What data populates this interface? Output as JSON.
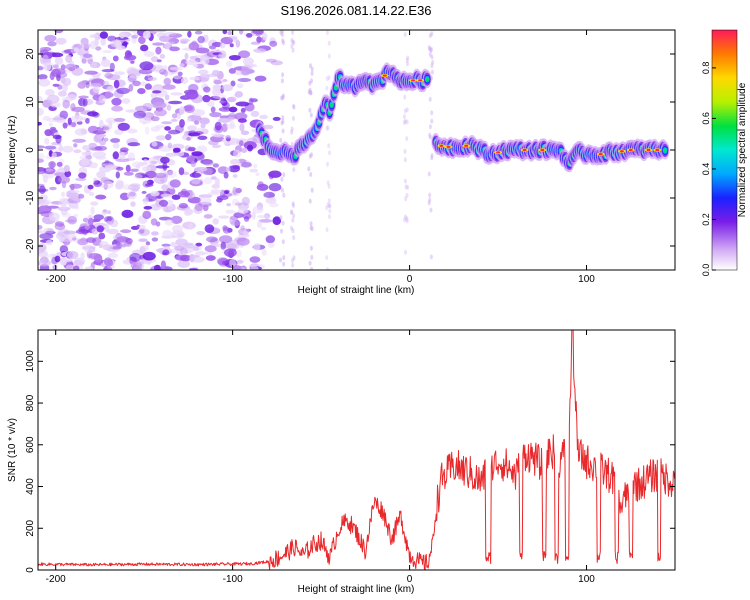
{
  "title": "S196.2026.081.14.22.E36",
  "chart_data": [
    {
      "type": "heatmap",
      "xlabel": "Height of straight line (km)",
      "ylabel": "Frequency (Hz)",
      "xlim": [
        -210,
        150
      ],
      "ylim": [
        -25,
        25
      ],
      "xticks": [
        -200,
        -100,
        0,
        100
      ],
      "yticks": [
        -20,
        -10,
        0,
        10,
        20
      ],
      "colorbar": {
        "label": "Normalized spectral amplitude",
        "range": [
          0,
          0.95
        ],
        "ticks": [
          "0.0",
          "0.2",
          "0.4",
          "0.6",
          "0.8"
        ],
        "tick_values": [
          0,
          0.2,
          0.4,
          0.6,
          0.8
        ]
      },
      "ridge": [
        {
          "x": -85,
          "f": 4
        },
        {
          "x": -80,
          "f": 1
        },
        {
          "x": -75,
          "f": -1
        },
        {
          "x": -70,
          "f": 0
        },
        {
          "x": -65,
          "f": -1
        },
        {
          "x": -58,
          "f": 2
        },
        {
          "x": -55,
          "f": 3
        },
        {
          "x": -52,
          "f": 5
        },
        {
          "x": -48,
          "f": 10
        },
        {
          "x": -45,
          "f": 8
        },
        {
          "x": -40,
          "f": 15
        },
        {
          "x": -35,
          "f": 13
        },
        {
          "x": -30,
          "f": 13.5
        },
        {
          "x": -25,
          "f": 15
        },
        {
          "x": -20,
          "f": 13.5
        },
        {
          "x": -15,
          "f": 15
        },
        {
          "x": -12,
          "f": 16.5
        },
        {
          "x": -8,
          "f": 15.5
        },
        {
          "x": -4,
          "f": 14
        },
        {
          "x": 0,
          "f": 14.5
        },
        {
          "x": 5,
          "f": 14.5
        },
        {
          "x": 10,
          "f": 14.5
        },
        {
          "x": 15,
          "f": 1
        },
        {
          "x": 25,
          "f": 0.5
        },
        {
          "x": 35,
          "f": 1
        },
        {
          "x": 45,
          "f": -1
        },
        {
          "x": 55,
          "f": 0
        },
        {
          "x": 65,
          "f": 0
        },
        {
          "x": 75,
          "f": 0
        },
        {
          "x": 85,
          "f": 0
        },
        {
          "x": 90,
          "f": -3
        },
        {
          "x": 95,
          "f": -0.5
        },
        {
          "x": 105,
          "f": -1
        },
        {
          "x": 115,
          "f": -0.5
        },
        {
          "x": 125,
          "f": 0
        },
        {
          "x": 135,
          "f": 0
        },
        {
          "x": 145,
          "f": 0
        }
      ]
    },
    {
      "type": "line",
      "xlabel": "Height of straight line (km)",
      "ylabel": "SNR (10 * v/v)",
      "xlim": [
        -210,
        150
      ],
      "ylim": [
        0,
        1150
      ],
      "xticks": [
        -200,
        -100,
        0,
        100
      ],
      "yticks": [
        0,
        200,
        400,
        600,
        800,
        1000
      ],
      "series": [
        {
          "name": "SNR",
          "color": "#e8282a",
          "x": [
            -210,
            -180,
            -150,
            -120,
            -90,
            -80,
            -75,
            -70,
            -65,
            -60,
            -55,
            -50,
            -45,
            -40,
            -35,
            -30,
            -25,
            -20,
            -15,
            -10,
            -5,
            0,
            5,
            10,
            13,
            15,
            18,
            20,
            25,
            30,
            35,
            40,
            45,
            50,
            55,
            60,
            65,
            70,
            75,
            80,
            85,
            90,
            92,
            95,
            100,
            105,
            110,
            115,
            120,
            125,
            130,
            135,
            140,
            145,
            150
          ],
          "y": [
            28,
            25,
            28,
            26,
            30,
            40,
            55,
            80,
            110,
            70,
            120,
            140,
            60,
            200,
            240,
            180,
            90,
            330,
            280,
            150,
            260,
            70,
            40,
            30,
            120,
            300,
            430,
            450,
            500,
            480,
            460,
            420,
            480,
            520,
            500,
            450,
            560,
            540,
            500,
            580,
            520,
            600,
            1150,
            560,
            520,
            500,
            470,
            440,
            300,
            420,
            410,
            440,
            460,
            440,
            420
          ]
        }
      ]
    }
  ]
}
